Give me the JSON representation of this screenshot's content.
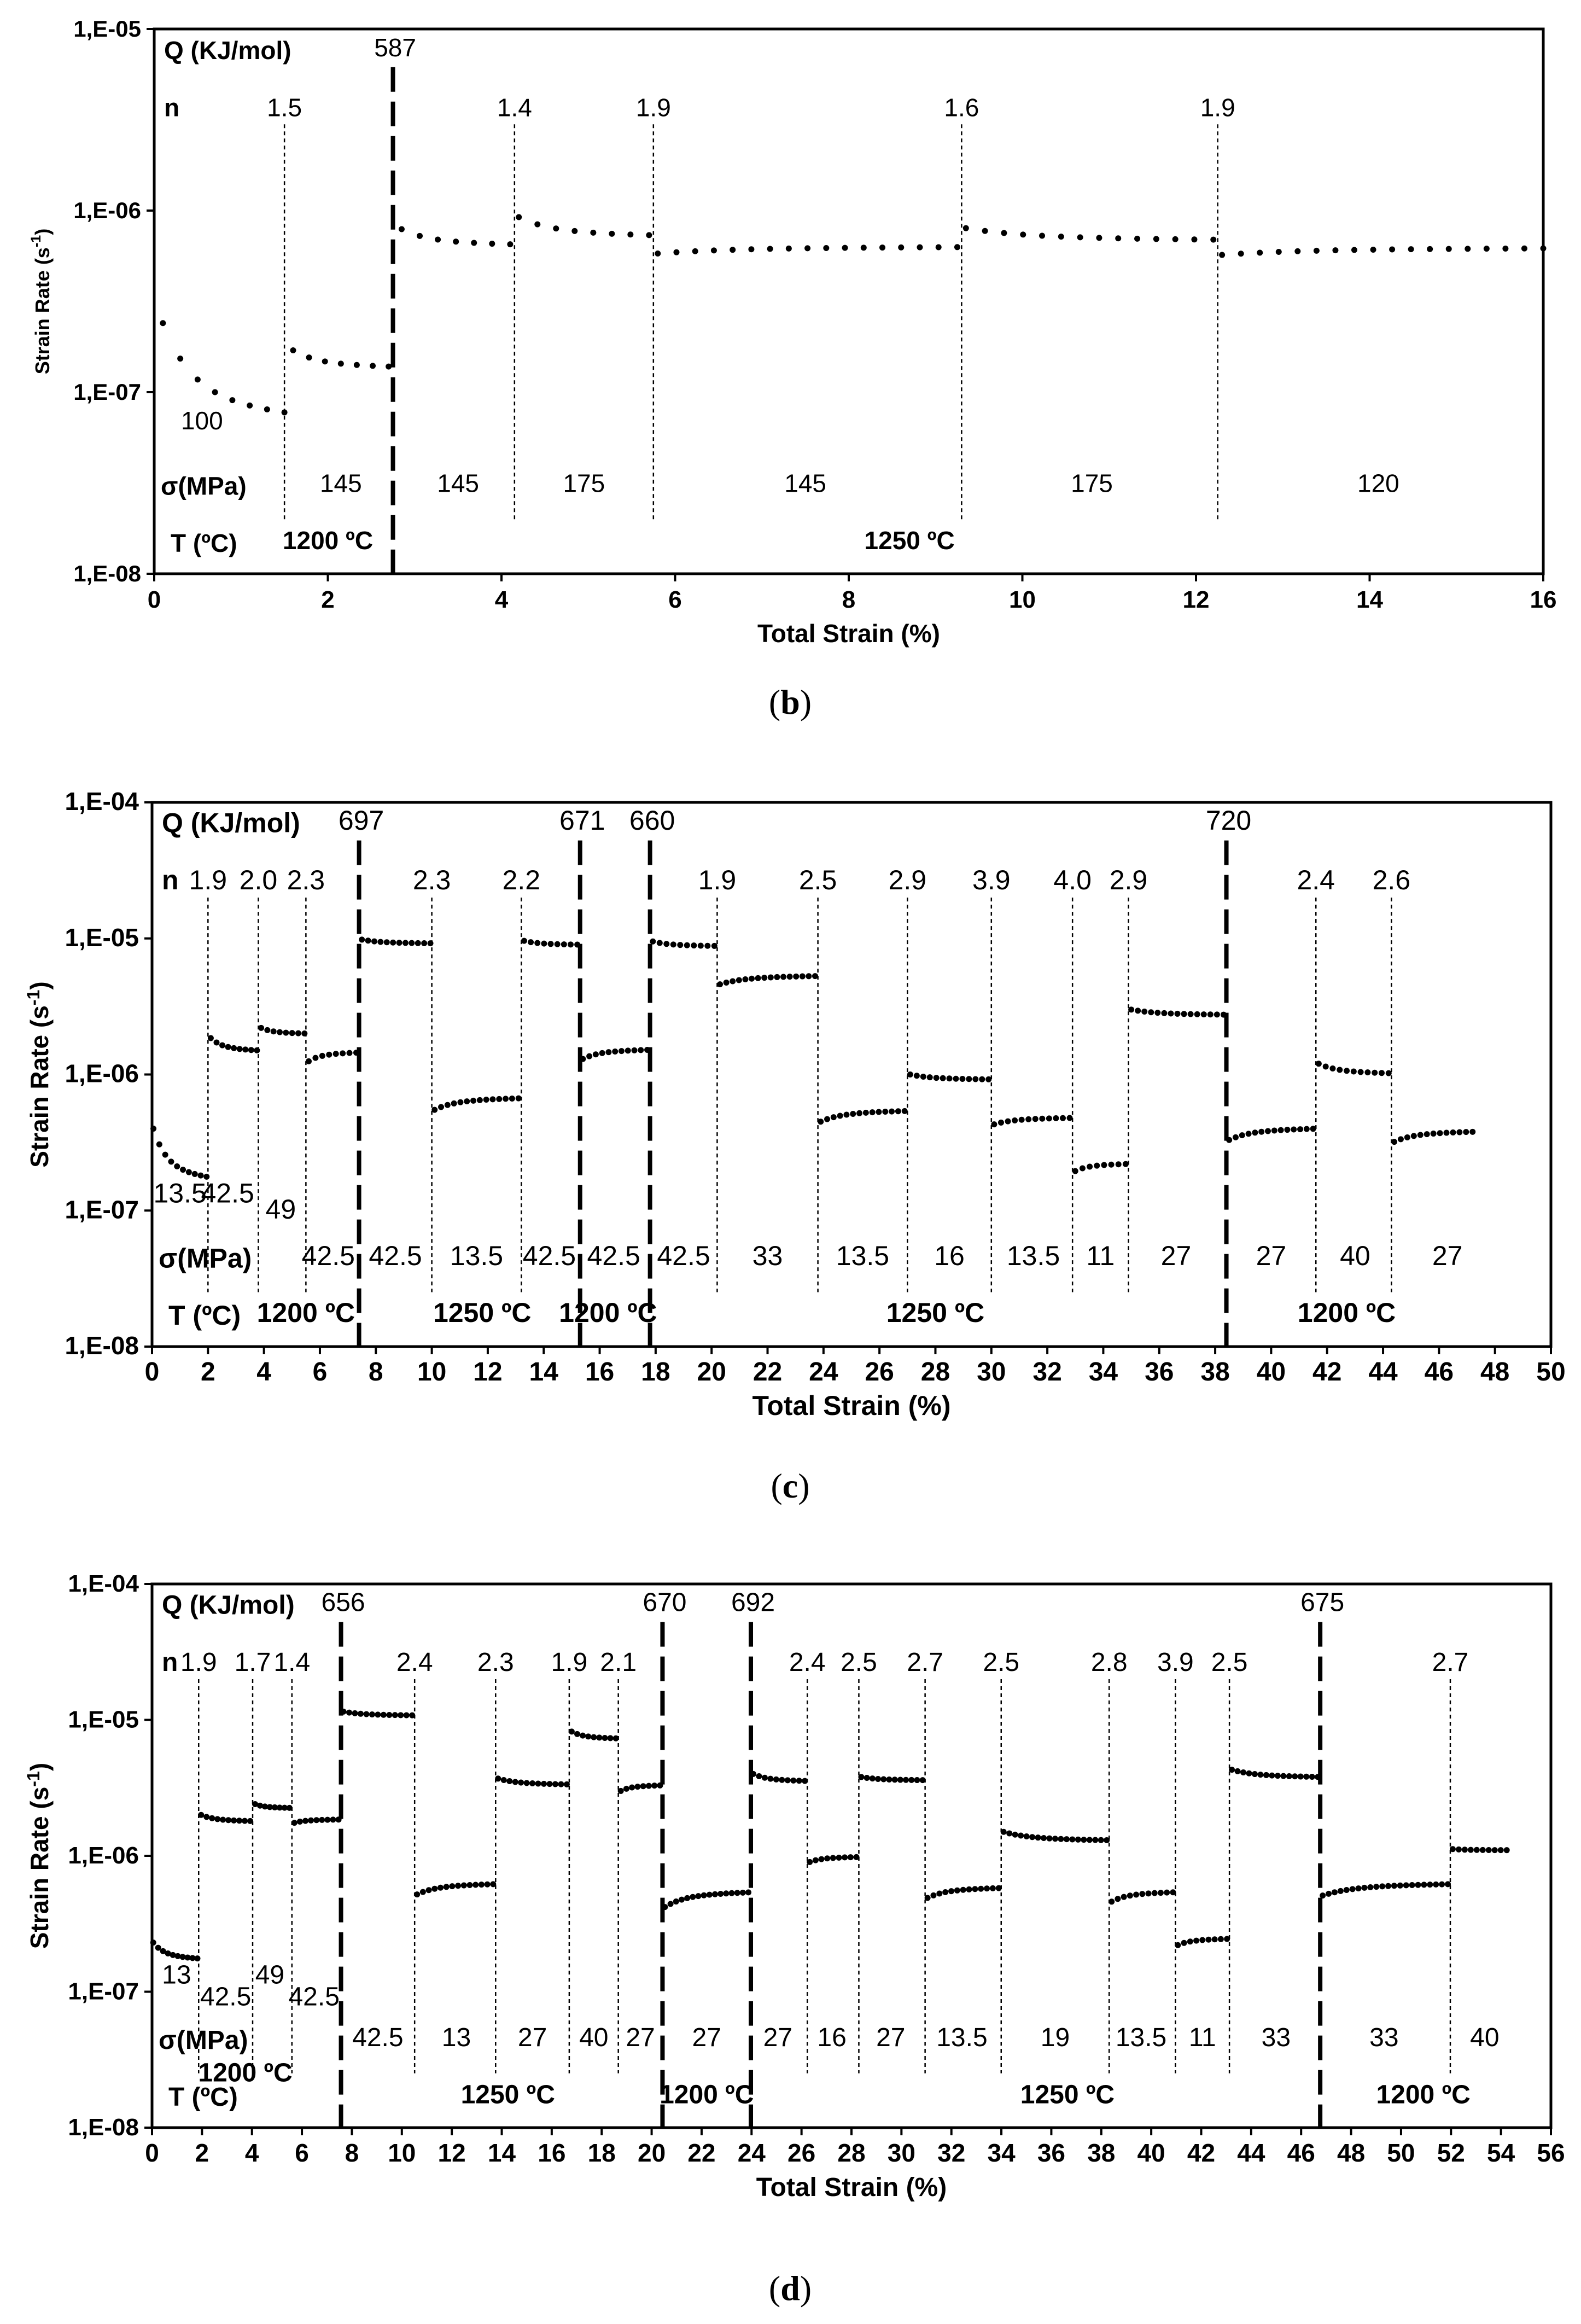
{
  "chart_data": [
    {
      "type": "scatter",
      "panel": "(b)",
      "xlabel": "Total Strain (%)",
      "ylabel": "Strain Rate (s-1)",
      "ylabel_main": "Strain Rate (s",
      "ylabel_sup": "-1",
      "ylabel_end": ")",
      "xlim": [
        0,
        16
      ],
      "x_ticks": [
        "0",
        "2",
        "4",
        "6",
        "8",
        "10",
        "12",
        "14",
        "16"
      ],
      "y_scale": "log",
      "y_ticks": [
        "1,E-08",
        "1,E-07",
        "1,E-06",
        "1,E-05"
      ],
      "row_labels": {
        "Q": "Q (KJ/mol)",
        "n": "n",
        "sigma": "σ(MPa)",
        "T": "T (ºC)"
      },
      "temperature_changes": [
        {
          "x": 2.75,
          "Q": "587"
        }
      ],
      "stress_changes": [
        {
          "x": 1.5,
          "n": "1.5"
        },
        {
          "x": 4.15,
          "n": "1.4"
        },
        {
          "x": 5.75,
          "n": "1.9"
        },
        {
          "x": 9.3,
          "n": "1.6"
        },
        {
          "x": 12.25,
          "n": "1.9"
        }
      ],
      "stresses": [
        {
          "x": 0.55,
          "level": "low",
          "label": "100"
        },
        {
          "x": 2.15,
          "level": "row",
          "label": "145"
        },
        {
          "x": 3.5,
          "level": "row",
          "label": "145"
        },
        {
          "x": 4.95,
          "level": "row",
          "label": "175"
        },
        {
          "x": 7.5,
          "level": "row",
          "label": "145"
        },
        {
          "x": 10.8,
          "level": "row",
          "label": "175"
        },
        {
          "x": 14.1,
          "level": "row",
          "label": "120"
        }
      ],
      "temperatures": [
        {
          "x": 2.0,
          "label": "1200 ºC"
        },
        {
          "x": 8.7,
          "label": "1250 ºC"
        }
      ],
      "series": [
        {
          "name": "1200 ºC / 100 MPa",
          "x0": 0.1,
          "x1": 1.5,
          "y0": 2.4e-07,
          "y1": 7.6e-08,
          "n": 8
        },
        {
          "name": "1200 ºC / 145 MPa",
          "x0": 1.6,
          "x1": 2.7,
          "y0": 1.7e-07,
          "y1": 1.38e-07,
          "n": 7
        },
        {
          "name": "1250 ºC / 145 MPa",
          "x0": 2.85,
          "x1": 4.1,
          "y0": 7.9e-07,
          "y1": 6.5e-07,
          "n": 7
        },
        {
          "name": "1250 ºC / 175 MPa",
          "x0": 4.2,
          "x1": 5.7,
          "y0": 9.2e-07,
          "y1": 7.3e-07,
          "n": 8
        },
        {
          "name": "1250 ºC / 145 MPa",
          "x0": 5.8,
          "x1": 9.25,
          "y0": 5.8e-07,
          "y1": 6.3e-07,
          "n": 17
        },
        {
          "name": "1250 ºC / 175 MPa",
          "x0": 9.35,
          "x1": 12.2,
          "y0": 8e-07,
          "y1": 6.9e-07,
          "n": 14
        },
        {
          "name": "1250 ºC / 120 MPa",
          "x0": 12.3,
          "x1": 16.0,
          "y0": 5.7e-07,
          "y1": 6.2e-07,
          "n": 18
        }
      ]
    },
    {
      "type": "scatter",
      "panel": "(c)",
      "xlabel": "Total Strain (%)",
      "ylabel": "Strain Rate (s-1)",
      "ylabel_main": "Strain Rate (s",
      "ylabel_sup": "-1",
      "ylabel_end": ")",
      "xlim": [
        0,
        50
      ],
      "x_ticks": [
        "0",
        "2",
        "4",
        "6",
        "8",
        "10",
        "12",
        "14",
        "16",
        "18",
        "20",
        "22",
        "24",
        "26",
        "28",
        "30",
        "32",
        "34",
        "36",
        "38",
        "40",
        "42",
        "44",
        "46",
        "48",
        "50"
      ],
      "y_scale": "log",
      "y_ticks": [
        "1,E-08",
        "1,E-07",
        "1,E-06",
        "1,E-05",
        "1,E-04"
      ],
      "row_labels": {
        "Q": "Q (KJ/mol)",
        "n": "n",
        "sigma": "σ(MPa)",
        "T": "T (ºC)"
      },
      "temperature_changes": [
        {
          "x": 7.4,
          "Q": "697"
        },
        {
          "x": 15.3,
          "Q": "671"
        },
        {
          "x": 17.8,
          "Q": "660"
        },
        {
          "x": 38.4,
          "Q": "720"
        }
      ],
      "stress_changes": [
        {
          "x": 2.0,
          "n": "1.9"
        },
        {
          "x": 3.8,
          "n": "2.0"
        },
        {
          "x": 5.5,
          "n": "2.3"
        },
        {
          "x": 10.0,
          "n": "2.3"
        },
        {
          "x": 13.2,
          "n": "2.2"
        },
        {
          "x": 20.2,
          "n": "1.9"
        },
        {
          "x": 23.8,
          "n": "2.5"
        },
        {
          "x": 27.0,
          "n": "2.9"
        },
        {
          "x": 30.0,
          "n": "3.9"
        },
        {
          "x": 32.9,
          "n": "4.0"
        },
        {
          "x": 34.9,
          "n": "2.9"
        },
        {
          "x": 41.6,
          "n": "2.4"
        },
        {
          "x": 44.3,
          "n": "2.6"
        }
      ],
      "stresses": [
        {
          "x": 1.0,
          "level": "low",
          "label": "13.5"
        },
        {
          "x": 2.7,
          "level": "low",
          "label": "42.5"
        },
        {
          "x": 4.6,
          "level": "mid",
          "label": "49"
        },
        {
          "x": 6.3,
          "level": "row",
          "label": "42.5"
        },
        {
          "x": 8.7,
          "level": "row",
          "label": "42.5"
        },
        {
          "x": 11.6,
          "level": "row",
          "label": "13.5"
        },
        {
          "x": 14.2,
          "level": "row",
          "label": "42.5"
        },
        {
          "x": 16.5,
          "level": "row",
          "label": "42.5"
        },
        {
          "x": 19.0,
          "level": "row",
          "label": "42.5"
        },
        {
          "x": 22.0,
          "level": "row",
          "label": "33"
        },
        {
          "x": 25.4,
          "level": "row",
          "label": "13.5"
        },
        {
          "x": 28.5,
          "level": "row",
          "label": "16"
        },
        {
          "x": 31.5,
          "level": "row",
          "label": "13.5"
        },
        {
          "x": 33.9,
          "level": "row",
          "label": "11"
        },
        {
          "x": 36.6,
          "level": "row",
          "label": "27"
        },
        {
          "x": 40.0,
          "level": "row",
          "label": "27"
        },
        {
          "x": 43.0,
          "level": "row",
          "label": "40"
        },
        {
          "x": 46.3,
          "level": "row",
          "label": "27"
        }
      ],
      "temperatures": [
        {
          "x": 5.5,
          "label": "1200 ºC"
        },
        {
          "x": 11.8,
          "label": "1250 ºC"
        },
        {
          "x": 16.3,
          "label": "1200 ºC"
        },
        {
          "x": 28.0,
          "label": "1250 ºC"
        },
        {
          "x": 42.7,
          "label": "1200 ºC"
        }
      ],
      "series": [
        {
          "name": "1200 ºC / 13.5 MPa",
          "x0": 0.05,
          "x1": 1.95,
          "y0": 4e-07,
          "y1": 1.75e-07,
          "n": 10
        },
        {
          "name": "1200 ºC / 42.5 MPa",
          "x0": 2.1,
          "x1": 3.75,
          "y0": 1.85e-06,
          "y1": 1.5e-06,
          "n": 9
        },
        {
          "name": "1200 ºC / 49 MPa",
          "x0": 3.9,
          "x1": 5.45,
          "y0": 2.2e-06,
          "y1": 2e-06,
          "n": 8
        },
        {
          "name": "1200 ºC / 42.5 MPa",
          "x0": 5.6,
          "x1": 7.3,
          "y0": 1.25e-06,
          "y1": 1.45e-06,
          "n": 8
        },
        {
          "name": "1250 ºC / 42.5 MPa",
          "x0": 7.5,
          "x1": 9.95,
          "y0": 9.8e-06,
          "y1": 9.2e-06,
          "n": 12
        },
        {
          "name": "1250 ºC / 13.5 MPa",
          "x0": 10.1,
          "x1": 13.1,
          "y0": 5.5e-07,
          "y1": 6.7e-07,
          "n": 14
        },
        {
          "name": "1250 ºC / 42.5 MPa",
          "x0": 13.3,
          "x1": 15.2,
          "y0": 9.6e-06,
          "y1": 9e-06,
          "n": 9
        },
        {
          "name": "1200 ºC / 42.5 MPa",
          "x0": 15.4,
          "x1": 17.7,
          "y0": 1.3e-06,
          "y1": 1.52e-06,
          "n": 11
        },
        {
          "name": "1250 ºC / 42.5 MPa",
          "x0": 17.9,
          "x1": 20.1,
          "y0": 9.5e-06,
          "y1": 8.8e-06,
          "n": 10
        },
        {
          "name": "1250 ºC / 33 MPa",
          "x0": 20.3,
          "x1": 23.7,
          "y0": 4.6e-06,
          "y1": 5.3e-06,
          "n": 16
        },
        {
          "name": "1250 ºC / 13.5 MPa",
          "x0": 23.9,
          "x1": 26.9,
          "y0": 4.5e-07,
          "y1": 5.4e-07,
          "n": 14
        },
        {
          "name": "1250 ºC / 16 MPa",
          "x0": 27.1,
          "x1": 29.9,
          "y0": 1e-06,
          "y1": 9.2e-07,
          "n": 13
        },
        {
          "name": "1250 ºC / 13.5 MPa",
          "x0": 30.1,
          "x1": 32.8,
          "y0": 4.3e-07,
          "y1": 4.8e-07,
          "n": 12
        },
        {
          "name": "1250 ºC / 11 MPa",
          "x0": 33.0,
          "x1": 34.8,
          "y0": 1.95e-07,
          "y1": 2.2e-07,
          "n": 8
        },
        {
          "name": "1250 ºC / 27 MPa",
          "x0": 35.0,
          "x1": 38.3,
          "y0": 3e-06,
          "y1": 2.75e-06,
          "n": 15
        },
        {
          "name": "1200 ºC / 27 MPa",
          "x0": 38.5,
          "x1": 41.5,
          "y0": 3.3e-07,
          "y1": 4e-07,
          "n": 14
        },
        {
          "name": "1200 ºC / 40 MPa",
          "x0": 41.7,
          "x1": 44.2,
          "y0": 1.2e-06,
          "y1": 1.02e-06,
          "n": 11
        },
        {
          "name": "1200 ºC / 27 MPa",
          "x0": 44.4,
          "x1": 47.2,
          "y0": 3.2e-07,
          "y1": 3.8e-07,
          "n": 13
        }
      ]
    },
    {
      "type": "scatter",
      "panel": "(d)",
      "xlabel": "Total Strain (%)",
      "ylabel": "Strain Rate (s-1)",
      "ylabel_main": "Strain Rate (s",
      "ylabel_sup": "-1",
      "ylabel_end": ")",
      "xlim": [
        0,
        57
      ],
      "x_ticks": [
        "0",
        "2",
        "4",
        "6",
        "8",
        "10",
        "12",
        "14",
        "16",
        "18",
        "20",
        "22",
        "24",
        "26",
        "28",
        "30",
        "32",
        "34",
        "36",
        "38",
        "40",
        "42",
        "44",
        "46",
        "48",
        "50",
        "52",
        "54",
        "56"
      ],
      "y_scale": "log",
      "y_ticks": [
        "1,E-08",
        "1,E-07",
        "1,E-06",
        "1,E-05",
        "1,E-04"
      ],
      "row_labels": {
        "Q": "Q (KJ/mol)",
        "n": "n",
        "sigma": "σ(MPa)",
        "T": "T (ºC)"
      },
      "temperature_changes": [
        {
          "x": 7.7,
          "Q": "656"
        },
        {
          "x": 20.8,
          "Q": "670"
        },
        {
          "x": 24.4,
          "Q": "692"
        },
        {
          "x": 47.6,
          "Q": "675"
        }
      ],
      "stress_changes": [
        {
          "x": 1.9,
          "n": "1.9"
        },
        {
          "x": 4.1,
          "n": "1.7"
        },
        {
          "x": 5.7,
          "n": "1.4"
        },
        {
          "x": 10.7,
          "n": "2.4"
        },
        {
          "x": 14.0,
          "n": "2.3"
        },
        {
          "x": 17.0,
          "n": "1.9"
        },
        {
          "x": 19.0,
          "n": "2.1"
        },
        {
          "x": 26.7,
          "n": "2.4"
        },
        {
          "x": 28.8,
          "n": "2.5"
        },
        {
          "x": 31.5,
          "n": "2.7"
        },
        {
          "x": 34.6,
          "n": "2.5"
        },
        {
          "x": 39.0,
          "n": "2.8"
        },
        {
          "x": 41.7,
          "n": "3.9"
        },
        {
          "x": 43.9,
          "n": "2.5"
        },
        {
          "x": 52.9,
          "n": "2.7"
        }
      ],
      "stresses": [
        {
          "x": 1.0,
          "level": "low",
          "label": "13"
        },
        {
          "x": 3.0,
          "level": "low2",
          "label": "42.5"
        },
        {
          "x": 4.8,
          "level": "low",
          "label": "49"
        },
        {
          "x": 6.6,
          "level": "low2",
          "label": "42.5"
        },
        {
          "x": 9.2,
          "level": "row",
          "label": "42.5"
        },
        {
          "x": 12.4,
          "level": "row",
          "label": "13"
        },
        {
          "x": 15.5,
          "level": "row",
          "label": "27"
        },
        {
          "x": 18.0,
          "level": "row",
          "label": "40"
        },
        {
          "x": 19.9,
          "level": "row",
          "label": "27"
        },
        {
          "x": 22.6,
          "level": "row",
          "label": "27"
        },
        {
          "x": 25.5,
          "level": "row",
          "label": "27"
        },
        {
          "x": 27.7,
          "level": "row",
          "label": "16"
        },
        {
          "x": 30.1,
          "level": "row",
          "label": "27"
        },
        {
          "x": 33.0,
          "level": "row",
          "label": "13.5"
        },
        {
          "x": 36.8,
          "level": "row",
          "label": "19"
        },
        {
          "x": 40.3,
          "level": "row",
          "label": "13.5"
        },
        {
          "x": 42.8,
          "level": "row",
          "label": "11"
        },
        {
          "x": 45.8,
          "level": "row",
          "label": "33"
        },
        {
          "x": 50.2,
          "level": "row",
          "label": "33"
        },
        {
          "x": 54.3,
          "level": "row",
          "label": "40"
        }
      ],
      "temperatures": [
        {
          "x": 3.8,
          "level": "upper",
          "label": "1200 ºC"
        },
        {
          "x": 14.5,
          "label": "1250 ºC"
        },
        {
          "x": 22.6,
          "label": "1200 ºC"
        },
        {
          "x": 37.3,
          "label": "1250 ºC"
        },
        {
          "x": 51.8,
          "label": "1200 ºC"
        }
      ],
      "series": [
        {
          "name": "1200 ºC / 13 MPa",
          "x0": 0.05,
          "x1": 1.85,
          "y0": 2.3e-07,
          "y1": 1.75e-07,
          "n": 10
        },
        {
          "name": "1200 ºC / 42.5 MPa",
          "x0": 2.0,
          "x1": 4.0,
          "y0": 2e-06,
          "y1": 1.8e-06,
          "n": 10
        },
        {
          "name": "1200 ºC / 49 MPa",
          "x0": 4.2,
          "x1": 5.6,
          "y0": 2.4e-06,
          "y1": 2.25e-06,
          "n": 8
        },
        {
          "name": "1200 ºC / 42.5 MPa",
          "x0": 5.8,
          "x1": 7.6,
          "y0": 1.75e-06,
          "y1": 1.85e-06,
          "n": 9
        },
        {
          "name": "1250 ºC / 42.5 MPa",
          "x0": 7.8,
          "x1": 10.6,
          "y0": 1.15e-05,
          "y1": 1.08e-05,
          "n": 13
        },
        {
          "name": "1250 ºC / 13 MPa",
          "x0": 10.8,
          "x1": 13.9,
          "y0": 5.2e-07,
          "y1": 6.2e-07,
          "n": 14
        },
        {
          "name": "1250 ºC / 27 MPa",
          "x0": 14.1,
          "x1": 16.9,
          "y0": 3.7e-06,
          "y1": 3.35e-06,
          "n": 13
        },
        {
          "name": "1250 ºC / 40 MPa",
          "x0": 17.1,
          "x1": 18.9,
          "y0": 8.2e-06,
          "y1": 7.3e-06,
          "n": 9
        },
        {
          "name": "1250 ºC / 27 MPa",
          "x0": 19.1,
          "x1": 20.7,
          "y0": 3e-06,
          "y1": 3.3e-06,
          "n": 8
        },
        {
          "name": "1200 ºC / 27 MPa",
          "x0": 20.9,
          "x1": 24.3,
          "y0": 4.2e-07,
          "y1": 5.4e-07,
          "n": 16
        },
        {
          "name": "1250 ºC / 27 MPa",
          "x0": 24.5,
          "x1": 26.6,
          "y0": 4e-06,
          "y1": 3.55e-06,
          "n": 10
        },
        {
          "name": "1250 ºC / 16 MPa",
          "x0": 26.8,
          "x1": 28.7,
          "y0": 9e-07,
          "y1": 9.8e-07,
          "n": 9
        },
        {
          "name": "1250 ºC / 27 MPa",
          "x0": 28.9,
          "x1": 31.4,
          "y0": 3.8e-06,
          "y1": 3.6e-06,
          "n": 12
        },
        {
          "name": "1250 ºC / 13.5 MPa",
          "x0": 31.6,
          "x1": 34.5,
          "y0": 4.9e-07,
          "y1": 5.8e-07,
          "n": 13
        },
        {
          "name": "1250 ºC / 19 MPa",
          "x0": 34.7,
          "x1": 38.9,
          "y0": 1.5e-06,
          "y1": 1.3e-06,
          "n": 19
        },
        {
          "name": "1250 ºC / 13.5 MPa",
          "x0": 39.1,
          "x1": 41.6,
          "y0": 4.6e-07,
          "y1": 5.4e-07,
          "n": 11
        },
        {
          "name": "1250 ºC / 11 MPa",
          "x0": 41.8,
          "x1": 43.8,
          "y0": 2.2e-07,
          "y1": 2.45e-07,
          "n": 9
        },
        {
          "name": "1250 ºC / 33 MPa",
          "x0": 44.0,
          "x1": 47.5,
          "y0": 4.3e-06,
          "y1": 3.8e-06,
          "n": 16
        },
        {
          "name": "1200 ºC / 33 MPa",
          "x0": 47.7,
          "x1": 52.8,
          "y0": 5.1e-07,
          "y1": 6.2e-07,
          "n": 22
        },
        {
          "name": "1200 ºC / 40 MPa",
          "x0": 53.0,
          "x1": 55.2,
          "y0": 1.12e-06,
          "y1": 1.1e-06,
          "n": 10
        }
      ]
    }
  ],
  "captions": {
    "b_open": "(",
    "b": "b",
    "b_close": ")",
    "c_open": "(",
    "c": "c",
    "c_close": ")",
    "d_open": "(",
    "d": "d",
    "d_close": ")"
  }
}
